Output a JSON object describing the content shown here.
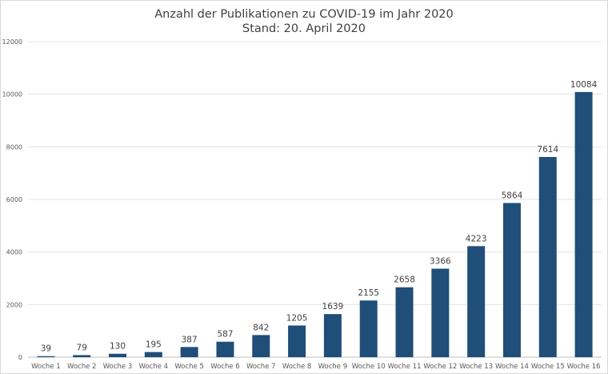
{
  "chart_data": {
    "type": "bar",
    "title": "Anzahl der Publikationen zu COVID-19 im Jahr 2020",
    "subtitle": "Stand: 20. April 2020",
    "xlabel": "",
    "ylabel": "",
    "ylim": [
      0,
      12000
    ],
    "yticks": [
      0,
      2000,
      4000,
      6000,
      8000,
      10000,
      12000
    ],
    "grid": true,
    "legend": "none",
    "bar_color": "#1f4e79",
    "categories": [
      "Woche 1",
      "Woche 2",
      "Woche 3",
      "Woche 4",
      "Woche 5",
      "Woche 6",
      "Woche 7",
      "Woche 8",
      "Woche 9",
      "Woche 10",
      "Woche 11",
      "Woche 12",
      "Woche 13",
      "Woche 14",
      "Woche 15",
      "Woche 16"
    ],
    "values": [
      39,
      79,
      130,
      195,
      387,
      587,
      842,
      1205,
      1639,
      2155,
      2658,
      3366,
      4223,
      5864,
      7614,
      10084
    ],
    "data_labels": true
  }
}
